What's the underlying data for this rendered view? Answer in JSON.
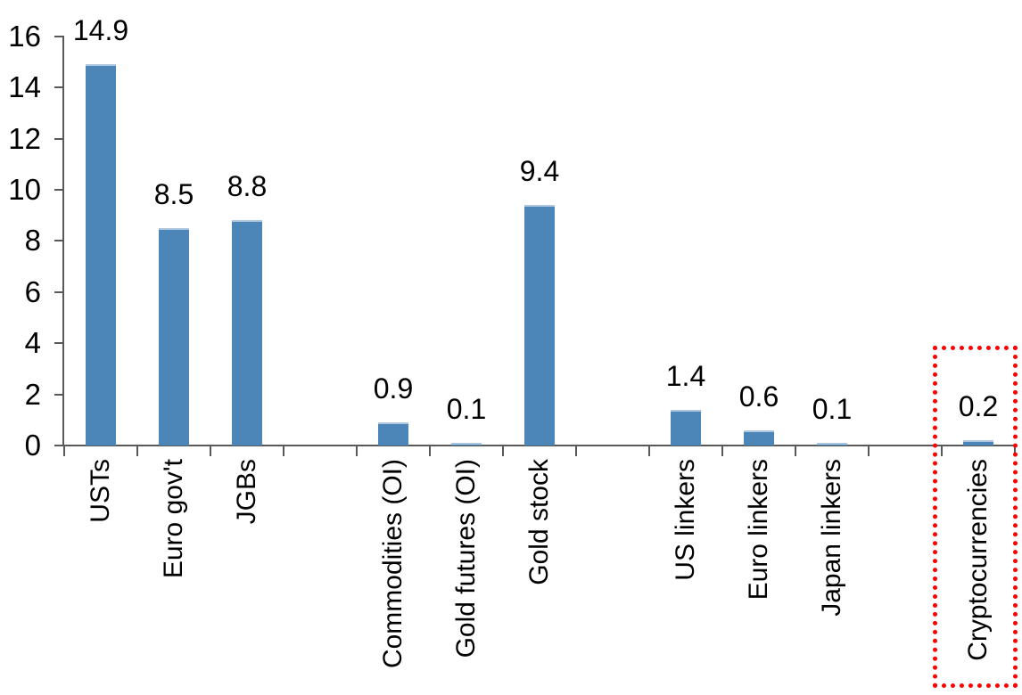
{
  "chart_data": {
    "type": "bar",
    "title": "",
    "xlabel": "",
    "ylabel": "",
    "categories": [
      "USTs",
      "Euro gov't",
      "JGBs",
      "Commodities (OI)",
      "Gold futures (OI)",
      "Gold stock",
      "US linkers",
      "Euro linkers",
      "Japan linkers",
      "Cryptocurrencies"
    ],
    "values": [
      14.9,
      8.5,
      8.8,
      0.9,
      0.1,
      9.4,
      1.4,
      0.6,
      0.1,
      0.2
    ],
    "data_labels": [
      "14.9",
      "8.5",
      "8.8",
      "0.9",
      "0.1",
      "9.4",
      "1.4",
      "0.6",
      "0.1",
      "0.2"
    ],
    "slots": [
      1,
      2,
      3,
      5,
      6,
      7,
      9,
      10,
      11,
      13
    ],
    "total_slots": 13,
    "ylim": [
      0,
      16
    ],
    "yticks": [
      0,
      2,
      4,
      6,
      8,
      10,
      12,
      14,
      16
    ],
    "grid": false,
    "legend": "none",
    "bar_color": "#4c85b8",
    "bar_top_edge_color": "#aec7de",
    "axis_color": "#595959",
    "text_color": "#000000",
    "highlight": {
      "category": "Cryptocurrencies",
      "style": "red-dotted-box",
      "color": "#ff0000"
    }
  }
}
